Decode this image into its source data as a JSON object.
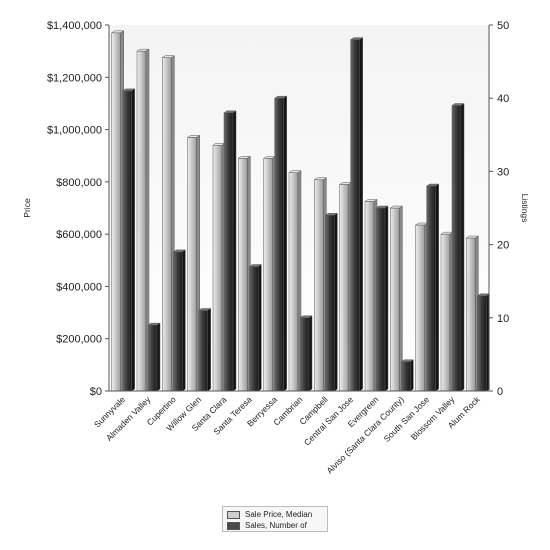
{
  "chart_data": {
    "type": "bar",
    "categories": [
      "Sunnyvale",
      "Almaden Valley",
      "Cupertino",
      "Willow Glen",
      "Santa Clara",
      "Santa Teresa",
      "Berryessa",
      "Cambrian",
      "Campbell",
      "Central San Jose",
      "Evergreen",
      "Alviso (Santa Clara County)",
      "South San Jose",
      "Blossom Valley",
      "Alum Rock"
    ],
    "series": [
      {
        "name": "Sale Price, Median",
        "axis": "left",
        "color": "#c8c8c8",
        "values": [
          1370000,
          1300000,
          1275000,
          970000,
          940000,
          890000,
          890000,
          835000,
          808000,
          790000,
          725000,
          700000,
          635000,
          600000,
          585000
        ]
      },
      {
        "name": "Sales, Number of",
        "axis": "right",
        "color": "#4a4a4a",
        "values": [
          41,
          9,
          19,
          11,
          38,
          17,
          40,
          10,
          24,
          48,
          25,
          4,
          28,
          39,
          13
        ]
      }
    ],
    "ylabel": "Price",
    "y2label": "Listings",
    "ylim": [
      0,
      1400000
    ],
    "y2lim": [
      0,
      50
    ],
    "y_ticks": [
      "$0",
      "$200,000",
      "$400,000",
      "$600,000",
      "$800,000",
      "$1,000,000",
      "$1,200,000",
      "$1,400,000"
    ],
    "y2_ticks": [
      "0",
      "10",
      "20",
      "30",
      "40",
      "50"
    ],
    "grid": false,
    "legend_position": "bottom-center"
  }
}
